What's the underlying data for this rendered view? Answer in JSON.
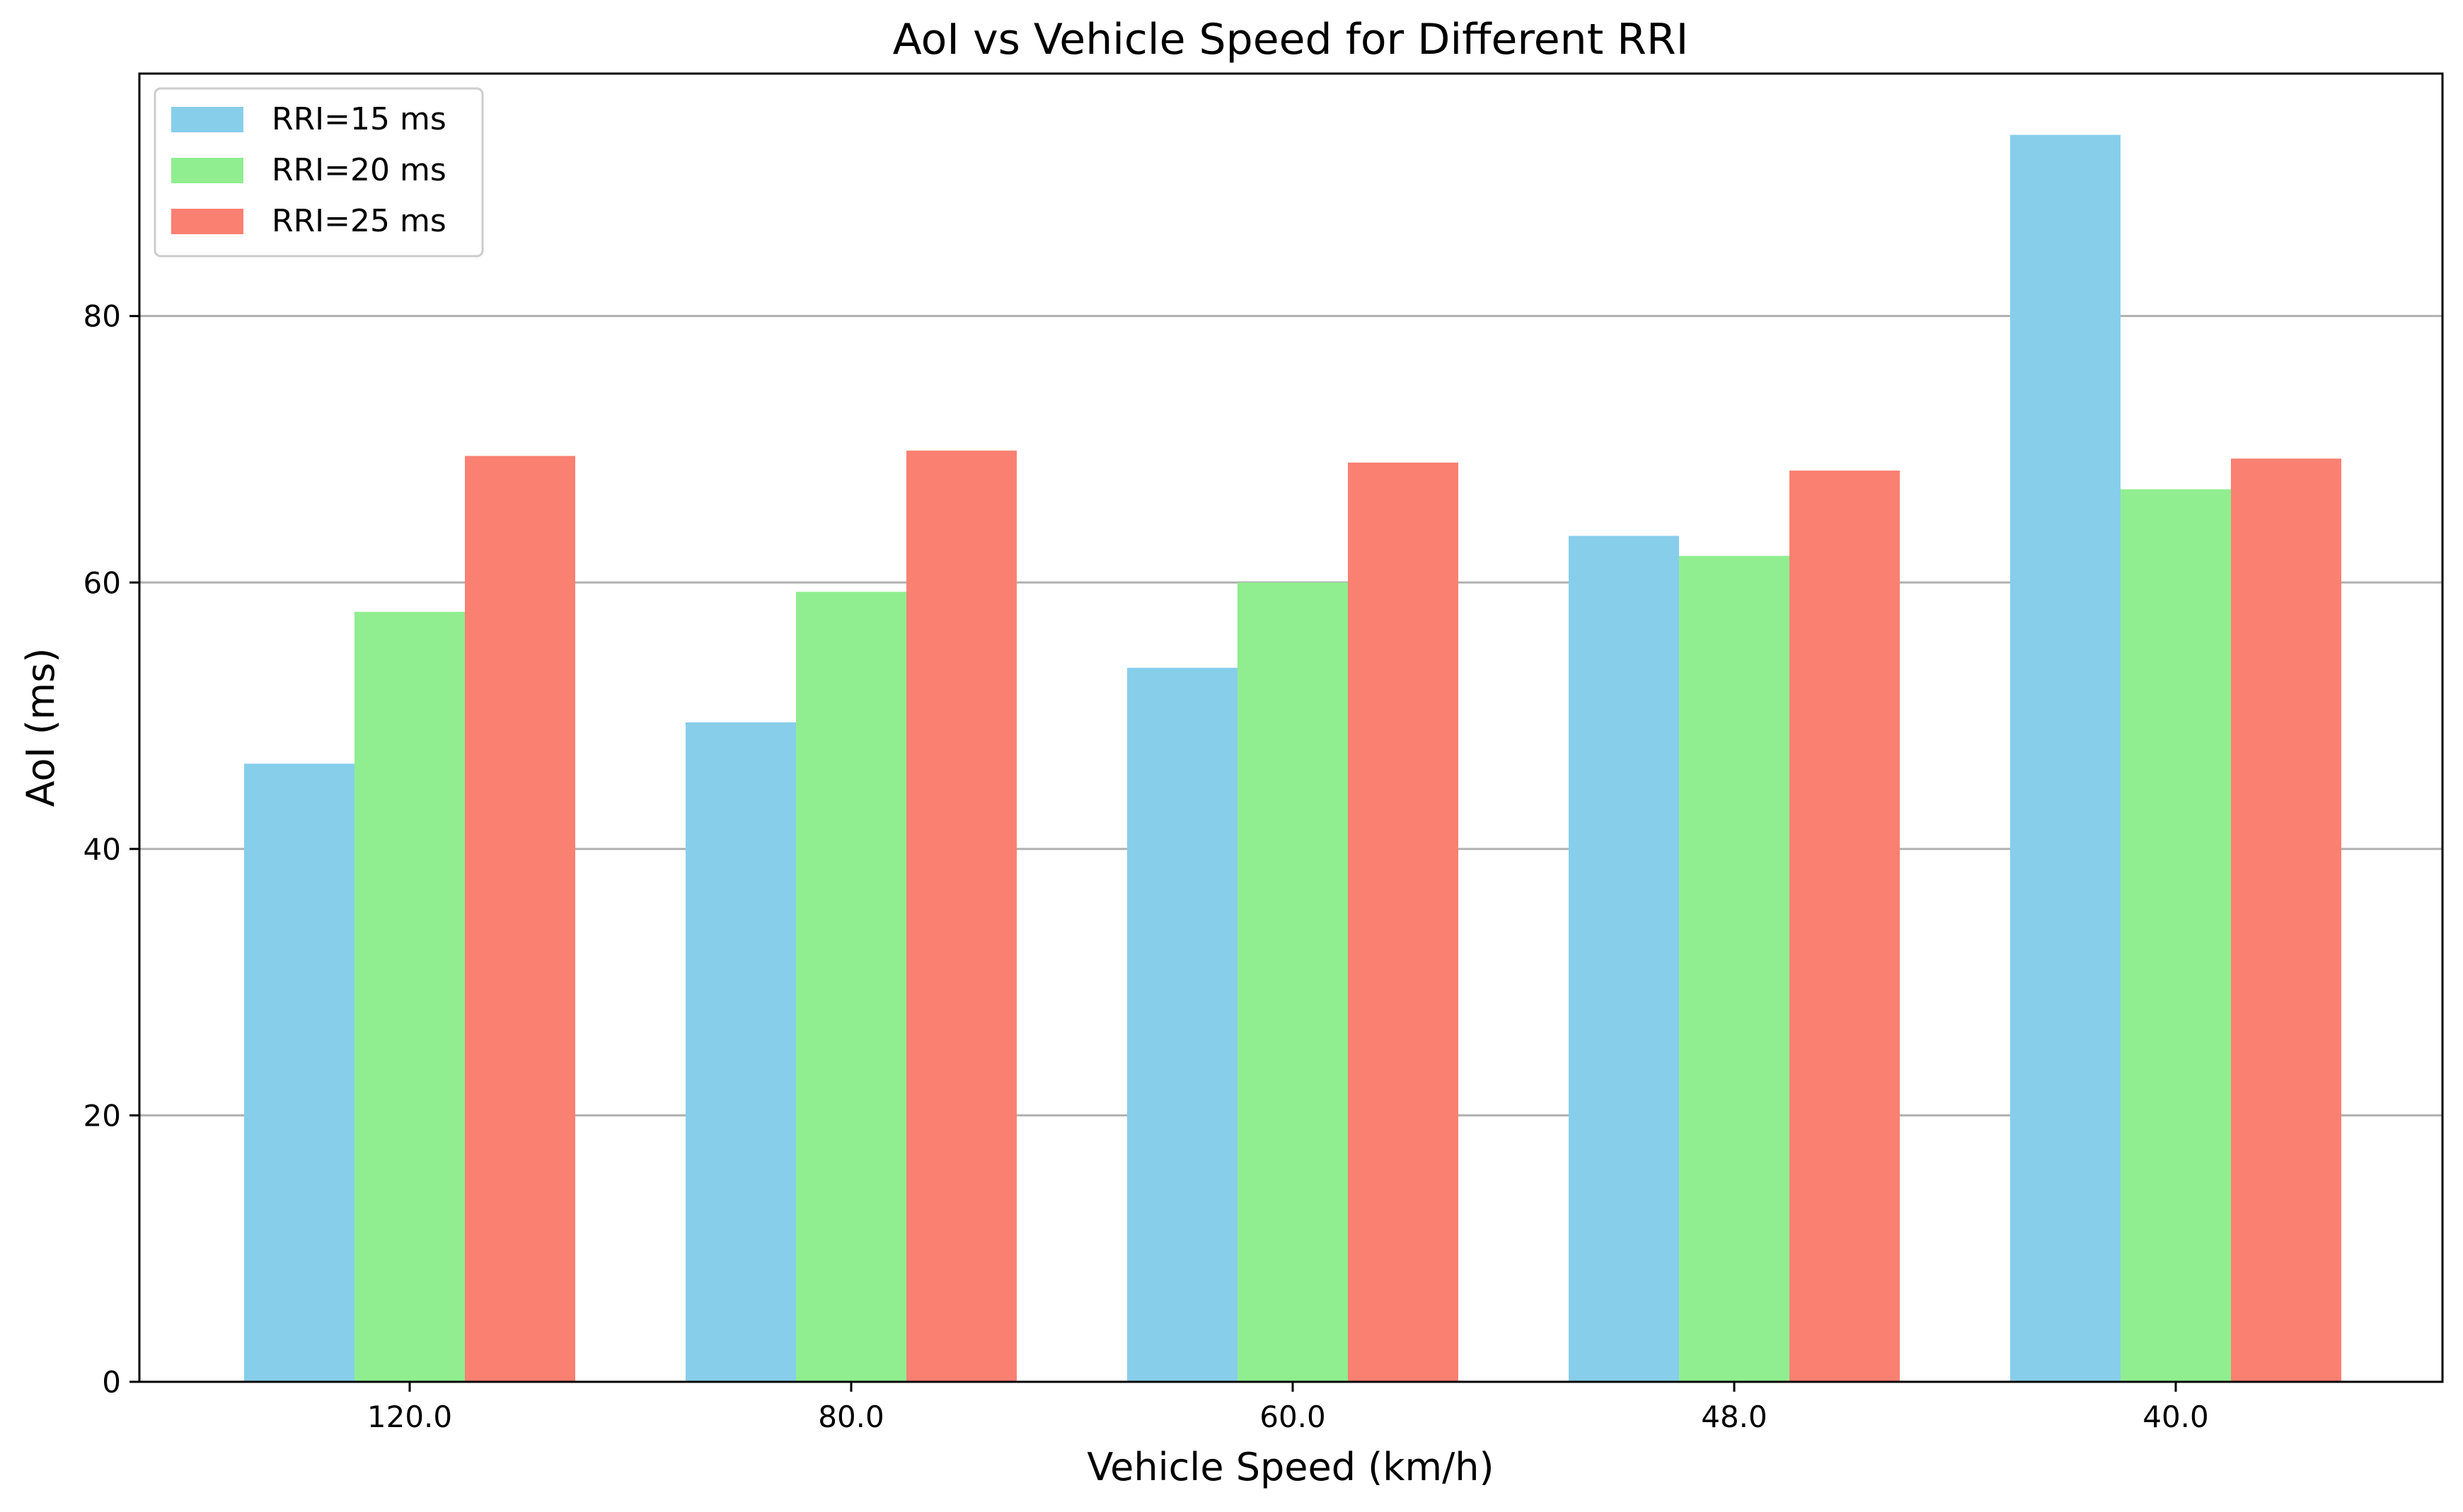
{
  "chart_data": {
    "type": "bar",
    "title": "AoI vs Vehicle Speed for Different RRI",
    "xlabel": "Vehicle Speed (km/h)",
    "ylabel": "AoI (ms)",
    "categories": [
      "120.0",
      "80.0",
      "60.0",
      "48.0",
      "40.0"
    ],
    "ylim": [
      0,
      98.2
    ],
    "yticks": [
      0,
      20,
      40,
      60,
      80
    ],
    "grid": "y-axis",
    "legend_position": "top-left",
    "series": [
      {
        "name": "RRI=15 ms",
        "color": "#87ceeb",
        "values": [
          46.4,
          49.5,
          53.6,
          63.5,
          93.6
        ]
      },
      {
        "name": "RRI=20 ms",
        "color": "#90ee90",
        "values": [
          57.8,
          59.3,
          60.0,
          62.0,
          67.0
        ]
      },
      {
        "name": "RRI=25 ms",
        "color": "#fa8072",
        "values": [
          69.5,
          69.9,
          69.0,
          68.4,
          69.3
        ]
      }
    ]
  }
}
